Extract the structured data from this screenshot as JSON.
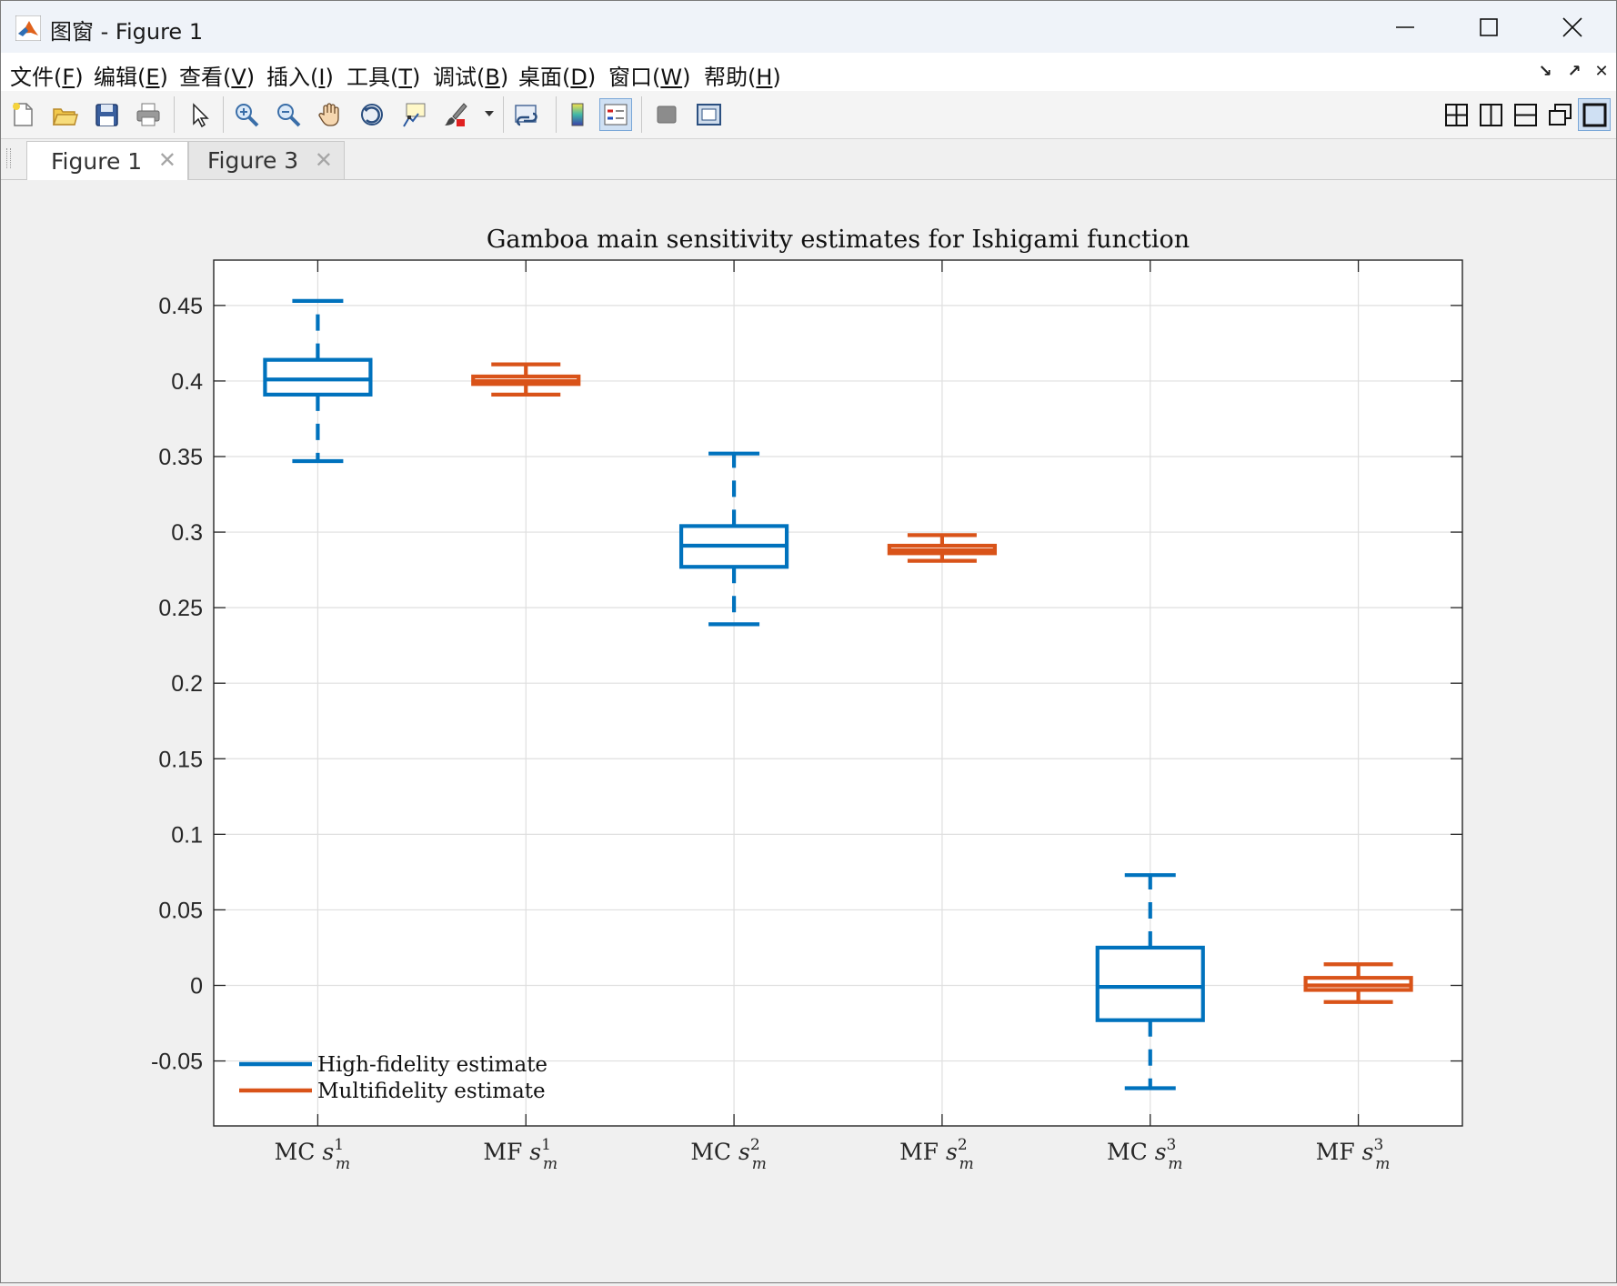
{
  "window": {
    "title": "图窗 - Figure 1",
    "minimize_label": "—",
    "maximize_label": "☐",
    "close_label": "✕"
  },
  "menu": {
    "items": [
      {
        "label": "文件(",
        "key": "F",
        "tail": ")"
      },
      {
        "label": "编辑(",
        "key": "E",
        "tail": ")"
      },
      {
        "label": "查看(",
        "key": "V",
        "tail": ")"
      },
      {
        "label": "插入(",
        "key": "I",
        "tail": ")"
      },
      {
        "label": "工具(",
        "key": "T",
        "tail": ")"
      },
      {
        "label": "调试(",
        "key": "B",
        "tail": ")"
      },
      {
        "label": "桌面(",
        "key": "D",
        "tail": ")"
      },
      {
        "label": "窗口(",
        "key": "W",
        "tail": ")"
      },
      {
        "label": "帮助(",
        "key": "H",
        "tail": ")"
      }
    ],
    "dock_controls": [
      "↘",
      "↗",
      "✕"
    ]
  },
  "toolbar": {
    "buttons": [
      "new-figure-icon",
      "open-folder-icon",
      "save-icon",
      "print-icon",
      "select-arrow-icon",
      "zoom-in-icon",
      "zoom-out-icon",
      "pan-hand-icon",
      "rotate-3d-icon",
      "data-tips-icon",
      "brush-icon",
      "link-plot-icon",
      "colorbar-icon",
      "legend-icon",
      "hide-plot-tools-icon",
      "show-plot-tools-icon"
    ],
    "layout_buttons": [
      "tile-2x2-icon",
      "tile-columns-icon",
      "tile-rows-icon",
      "float-icon",
      "maximize-icon"
    ]
  },
  "tabs": [
    {
      "label": "Figure 1",
      "active": true
    },
    {
      "label": "Figure 3",
      "active": false
    }
  ],
  "chart_data": {
    "type": "boxplot",
    "title": "Gamboa main sensitivity estimates for Ishigami function",
    "ylim": [
      -0.093,
      0.48
    ],
    "yticks": [
      -0.05,
      0,
      0.05,
      0.1,
      0.15,
      0.2,
      0.25,
      0.3,
      0.35,
      0.4,
      0.45
    ],
    "ytick_labels": [
      "-0.05",
      "0",
      "0.05",
      "0.1",
      "0.15",
      "0.2",
      "0.25",
      "0.3",
      "0.35",
      "0.4",
      "0.45"
    ],
    "grid": true,
    "legend_position": "bottom-left",
    "categories": [
      {
        "prefix": "MC",
        "sup": "1"
      },
      {
        "prefix": "MF",
        "sup": "1"
      },
      {
        "prefix": "MC",
        "sup": "2"
      },
      {
        "prefix": "MF",
        "sup": "2"
      },
      {
        "prefix": "MC",
        "sup": "3"
      },
      {
        "prefix": "MF",
        "sup": "3"
      }
    ],
    "category_symbol": "s",
    "category_sub": "m",
    "series": [
      {
        "name": "High-fidelity estimate",
        "color": "#0072BD",
        "boxes": [
          {
            "pos": 1,
            "whisker_low": 0.347,
            "q1": 0.391,
            "median": 0.401,
            "q3": 0.414,
            "whisker_high": 0.453
          },
          {
            "pos": 3,
            "whisker_low": 0.239,
            "q1": 0.277,
            "median": 0.291,
            "q3": 0.304,
            "whisker_high": 0.352
          },
          {
            "pos": 5,
            "whisker_low": -0.068,
            "q1": -0.023,
            "median": -0.001,
            "q3": 0.025,
            "whisker_high": 0.073
          }
        ]
      },
      {
        "name": "Multifidelity estimate",
        "color": "#D95319",
        "boxes": [
          {
            "pos": 2,
            "whisker_low": 0.391,
            "q1": 0.398,
            "median": 0.4,
            "q3": 0.403,
            "whisker_high": 0.411
          },
          {
            "pos": 4,
            "whisker_low": 0.281,
            "q1": 0.286,
            "median": 0.288,
            "q3": 0.291,
            "whisker_high": 0.298
          },
          {
            "pos": 6,
            "whisker_low": -0.011,
            "q1": -0.003,
            "median": 0.0,
            "q3": 0.005,
            "whisker_high": 0.014
          }
        ]
      }
    ]
  }
}
